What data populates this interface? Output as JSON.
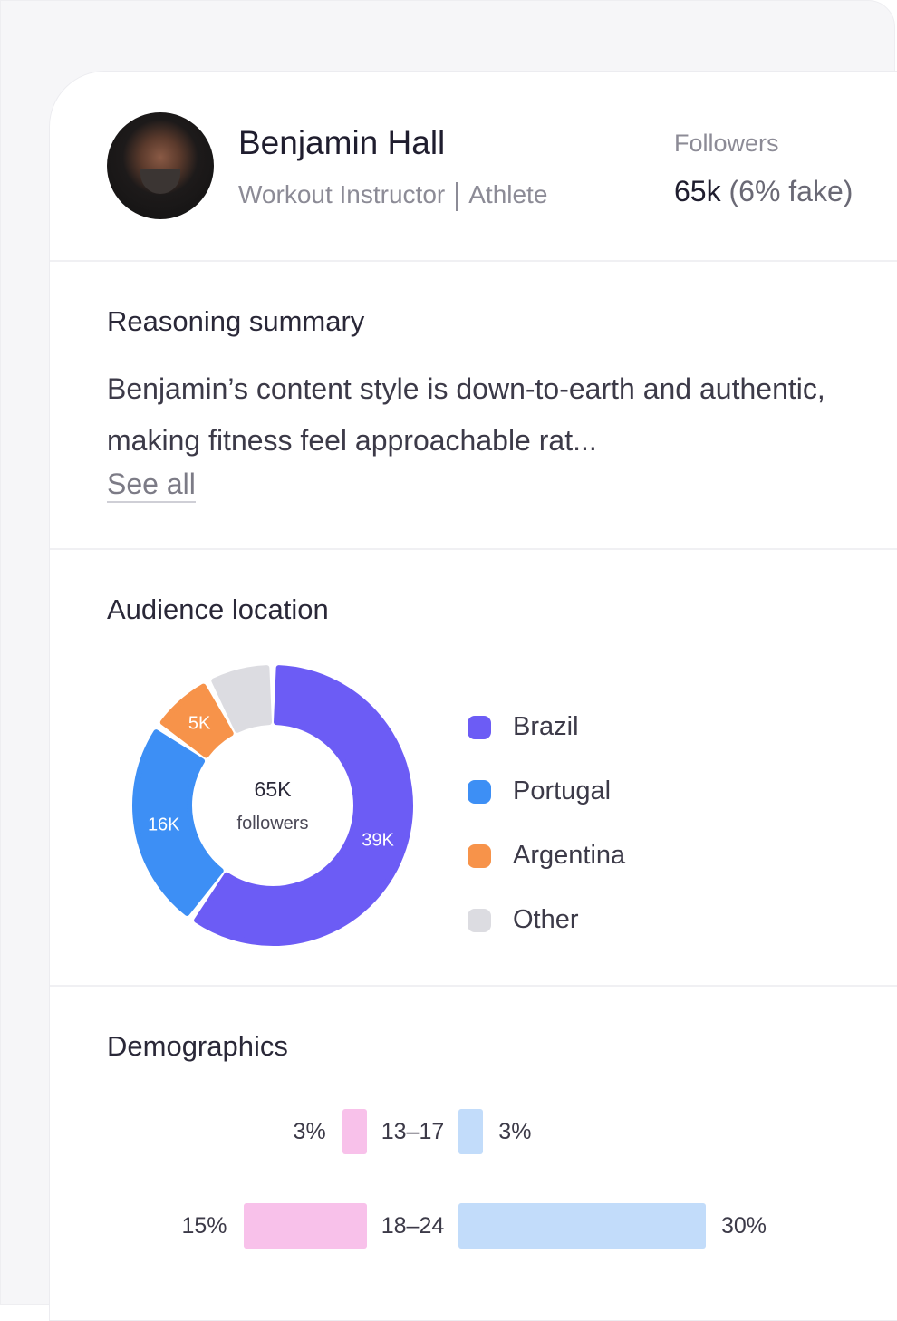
{
  "profile": {
    "name": "Benjamin Hall",
    "role": "Workout Instructor",
    "category": "Athlete",
    "followers_label": "Followers",
    "followers_value": "65k",
    "followers_fake": "(6% fake)"
  },
  "reasoning": {
    "title": "Reasoning summary",
    "text": "Benjamin’s content style is down-to-earth and authentic, making fitness feel approachable rat...",
    "see_all": "See all"
  },
  "chart_data": [
    {
      "type": "pie",
      "title": "Audience location",
      "center_value": "65K",
      "center_label": "followers",
      "slices": [
        {
          "name": "Brazil",
          "value": 39,
          "label": "39K",
          "color": "#6c5cf5"
        },
        {
          "name": "Portugal",
          "value": 16,
          "label": "16K",
          "color": "#3d8ff5"
        },
        {
          "name": "Argentina",
          "value": 5,
          "label": "5K",
          "color": "#f7934a"
        },
        {
          "name": "Other",
          "value": 5,
          "label": "",
          "color": "#dcdce1"
        }
      ],
      "legend": "right"
    },
    {
      "type": "bar",
      "title": "Demographics",
      "orientation": "horizontal-butterfly",
      "categories": [
        "13–17",
        "18–24"
      ],
      "series": [
        {
          "values": [
            3,
            15
          ],
          "labels": [
            "3%",
            "15%"
          ],
          "color": "#f8c1ea"
        },
        {
          "values": [
            3,
            30
          ],
          "labels": [
            "3%",
            "30%"
          ],
          "color": "#c2dcfa"
        }
      ]
    }
  ]
}
